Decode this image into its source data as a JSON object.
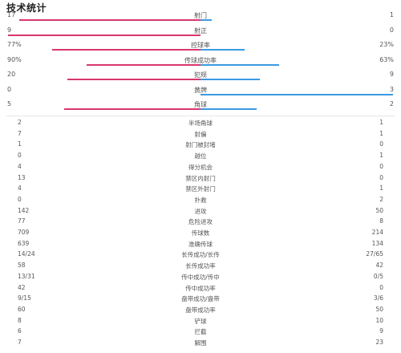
{
  "title": "技术统计",
  "bar_stats": [
    {
      "label": "射门",
      "home": "17",
      "away": "1",
      "home_ratio": 0.94,
      "away_ratio": 0.06
    },
    {
      "label": "射正",
      "home": "9",
      "away": "0",
      "home_ratio": 1.0,
      "away_ratio": 0.0
    },
    {
      "label": "控球率",
      "home": "77%",
      "away": "23%",
      "home_ratio": 0.77,
      "away_ratio": 0.23
    },
    {
      "label": "传球成功率",
      "home": "90%",
      "away": "63%",
      "home_ratio": 0.59,
      "away_ratio": 0.41
    },
    {
      "label": "犯规",
      "home": "20",
      "away": "9",
      "home_ratio": 0.69,
      "away_ratio": 0.31
    },
    {
      "label": "黄牌",
      "home": "0",
      "away": "3",
      "home_ratio": 0.0,
      "away_ratio": 1.0
    },
    {
      "label": "角球",
      "home": "5",
      "away": "2",
      "home_ratio": 0.71,
      "away_ratio": 0.29
    }
  ],
  "table_stats": [
    {
      "label": "半场角球",
      "home": "2",
      "away": "1"
    },
    {
      "label": "射偏",
      "home": "7",
      "away": "1"
    },
    {
      "label": "射门被封堵",
      "home": "1",
      "away": "0"
    },
    {
      "label": "越位",
      "home": "0",
      "away": "1"
    },
    {
      "label": "得分机会",
      "home": "4",
      "away": "0"
    },
    {
      "label": "禁区内射门",
      "home": "13",
      "away": "0"
    },
    {
      "label": "禁区外射门",
      "home": "4",
      "away": "1"
    },
    {
      "label": "扑救",
      "home": "0",
      "away": "2"
    },
    {
      "label": "进攻",
      "home": "142",
      "away": "50"
    },
    {
      "label": "危险进攻",
      "home": "77",
      "away": "8"
    },
    {
      "label": "传球数",
      "home": "709",
      "away": "214"
    },
    {
      "label": "准确传球",
      "home": "639",
      "away": "134"
    },
    {
      "label": "长传成功/长传",
      "home": "14/24",
      "away": "27/65"
    },
    {
      "label": "长传成功率",
      "home": "58",
      "away": "42"
    },
    {
      "label": "传中成功/传中",
      "home": "13/31",
      "away": "0/5"
    },
    {
      "label": "传中成功率",
      "home": "42",
      "away": "0"
    },
    {
      "label": "盘带成功/盘带",
      "home": "9/15",
      "away": "3/6"
    },
    {
      "label": "盘带成功率",
      "home": "60",
      "away": "50"
    },
    {
      "label": "铲球",
      "home": "8",
      "away": "10"
    },
    {
      "label": "拦截",
      "home": "6",
      "away": "9"
    },
    {
      "label": "解围",
      "home": "7",
      "away": "23"
    }
  ],
  "colors": {
    "home": "#d9376e",
    "away": "#3b9ae1"
  }
}
